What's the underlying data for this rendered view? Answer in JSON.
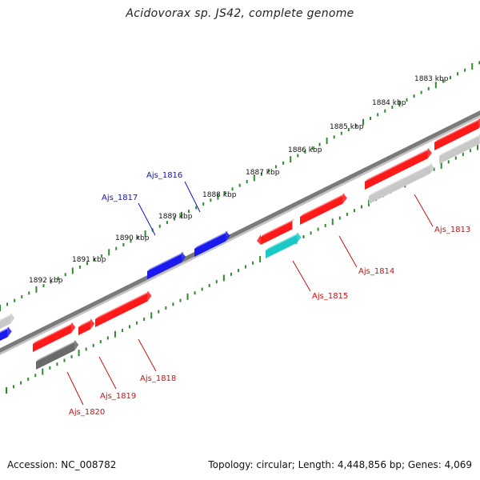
{
  "title": "Acidovorax sp. JS42, complete genome",
  "footer": {
    "accession": "Accession: NC_008782",
    "topology": "Topology: circular; Length: 4,448,856 bp; Genes: 4,069"
  },
  "colors": {
    "background": "#ffffff",
    "backbone": "#7a7a7a",
    "tick": "#2e8b2e",
    "gene_red": "#ff1a1a",
    "gene_blue": "#1a1aee",
    "gene_cyan": "#1ac8c8",
    "gene_grey": "#c8c8c8",
    "gene_dark": "#6a6a6a",
    "label_red": "#cc1111",
    "label_blue": "#1111cc"
  },
  "kbp_labels": [
    "1883 kbp",
    "1884 kbp",
    "1885 kbp",
    "1886 kbp",
    "1887 kbp",
    "1888 kbp",
    "1889 kbp",
    "1890 kbp",
    "1891 kbp",
    "1892 kbp"
  ],
  "gene_labels": {
    "top": [
      "Ajs_1816",
      "Ajs_1817"
    ],
    "bottom": [
      "Ajs_1813",
      "Ajs_1814",
      "Ajs_1815",
      "Ajs_1818",
      "Ajs_1819",
      "Ajs_1820"
    ]
  }
}
